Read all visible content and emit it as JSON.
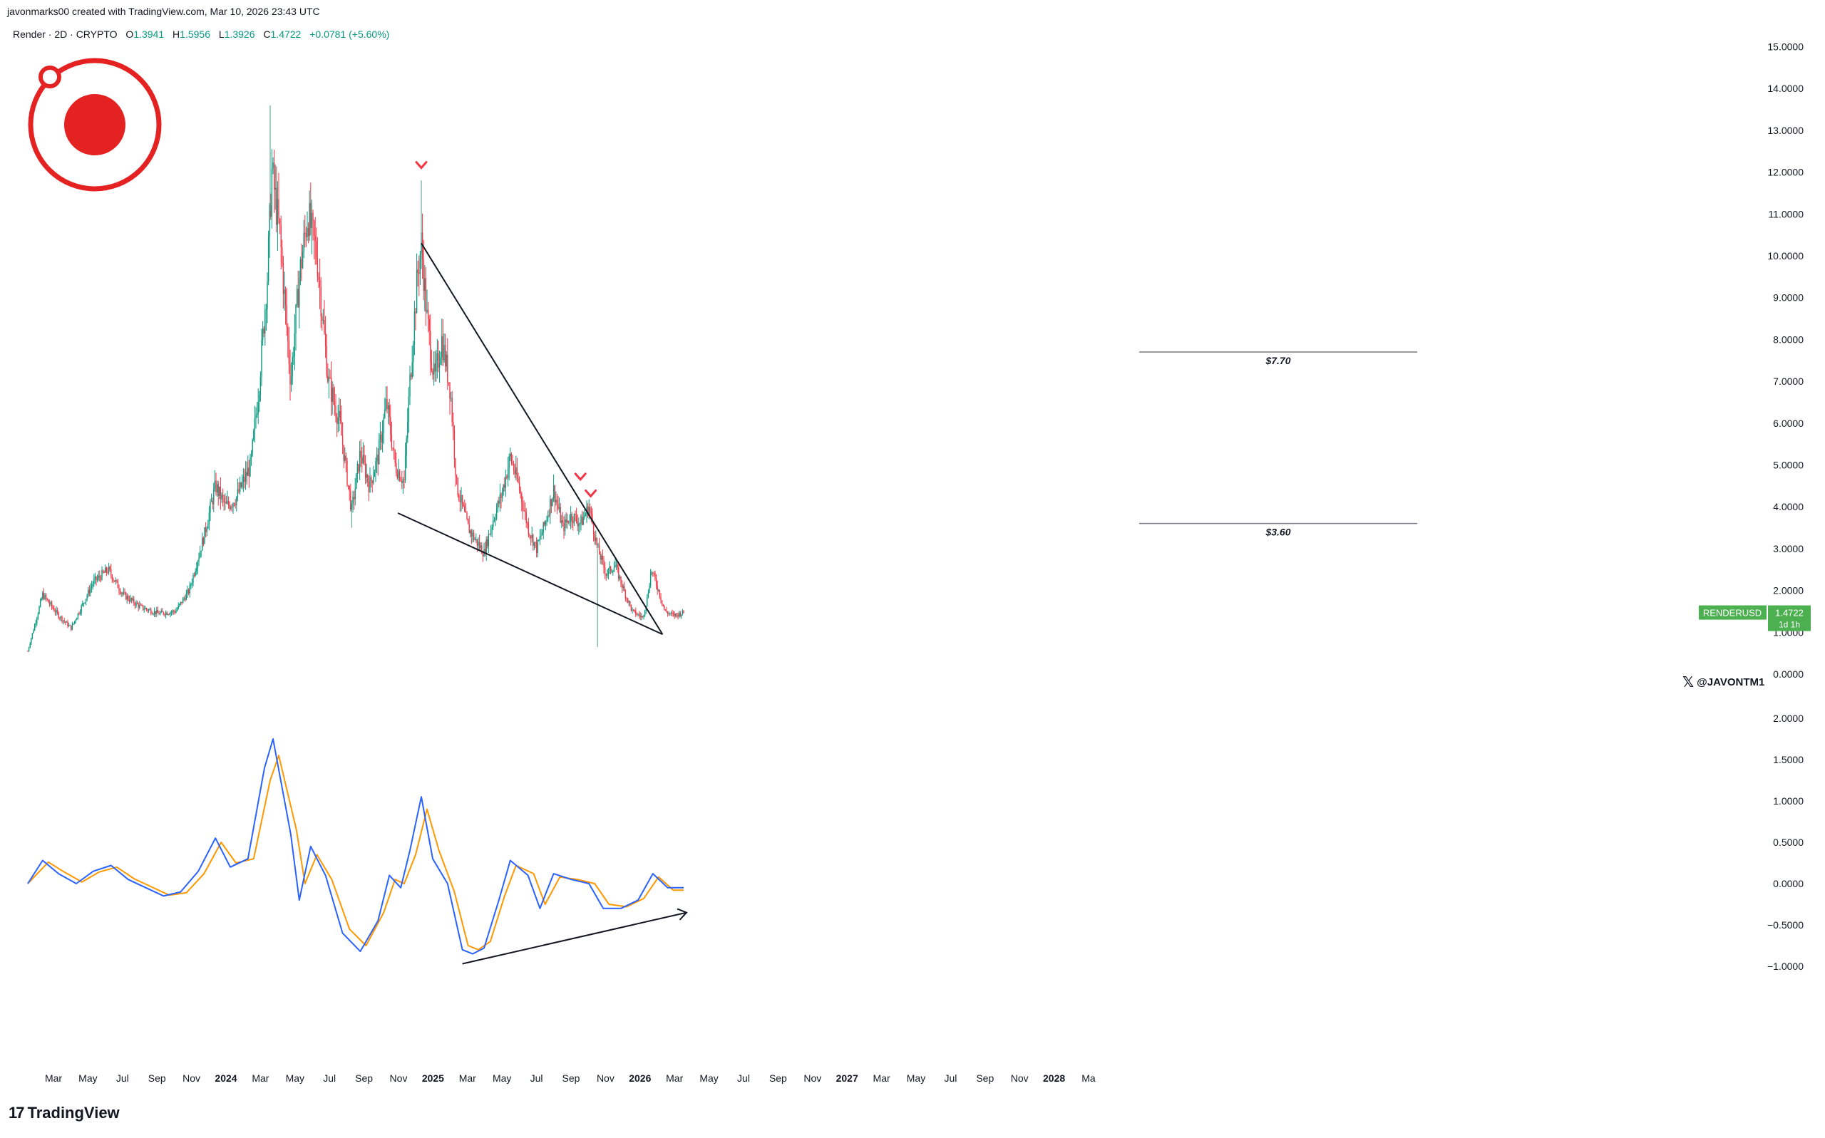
{
  "header": {
    "credit": "javonmarks00 created with TradingView.com, Mar 10, 2026 23:43 UTC",
    "symbol": "Render · 2D · CRYPTO",
    "open_label": "O",
    "open": "1.3941",
    "high_label": "H",
    "high": "1.5956",
    "low_label": "L",
    "low": "1.3926",
    "close_label": "C",
    "close": "1.4722",
    "change": "+0.0781 (+5.60%)"
  },
  "footer": {
    "brand_icon": "17",
    "brand": "TradingView"
  },
  "watermark": {
    "icon": "x-logo-icon",
    "handle": "@JAVONTM1"
  },
  "colors": {
    "up": "#089981",
    "down": "#f23645",
    "macd": "#2962ff",
    "signal": "#ff9800",
    "logo": "#e52222",
    "price_tag": "#4caf50"
  },
  "chart_data": [
    {
      "type": "candlestick",
      "series": [
        {
          "name": "RENDERUSD"
        }
      ],
      "x_ticks": [
        "Mar",
        "May",
        "Jul",
        "Sep",
        "Nov",
        "2024",
        "Mar",
        "May",
        "Jul",
        "Sep",
        "Nov",
        "2025",
        "Mar",
        "May",
        "Jul",
        "Sep",
        "Nov",
        "2026",
        "Mar",
        "May",
        "Jul",
        "Sep",
        "Nov",
        "2027",
        "Mar",
        "May",
        "Jul",
        "Sep",
        "Nov",
        "2028",
        "Ma"
      ],
      "y_ticks": [
        "15.0000",
        "14.0000",
        "13.0000",
        "12.0000",
        "11.0000",
        "10.0000",
        "9.0000",
        "8.0000",
        "7.0000",
        "6.0000",
        "5.0000",
        "4.0000",
        "3.0000",
        "2.0000",
        "1.0000",
        "0.0000"
      ],
      "ylim": [
        0,
        15
      ],
      "price_path": [
        [
          "2023-01-15",
          0.55
        ],
        [
          "2023-02-10",
          1.9
        ],
        [
          "2023-03-10",
          1.4
        ],
        [
          "2023-04-01",
          1.1
        ],
        [
          "2023-05-10",
          2.2
        ],
        [
          "2023-06-05",
          2.5
        ],
        [
          "2023-07-01",
          1.9
        ],
        [
          "2023-08-01",
          1.6
        ],
        [
          "2023-09-01",
          1.45
        ],
        [
          "2023-10-01",
          1.5
        ],
        [
          "2023-10-25",
          2.0
        ],
        [
          "2023-11-20",
          3.3
        ],
        [
          "2023-12-10",
          4.5
        ],
        [
          "2023-12-28",
          4.0
        ],
        [
          "2024-01-15",
          4.2
        ],
        [
          "2024-02-10",
          5.0
        ],
        [
          "2024-02-25",
          7.0
        ],
        [
          "2024-03-10",
          9.5
        ],
        [
          "2024-03-18",
          12.0
        ],
        [
          "2024-04-01",
          10.5
        ],
        [
          "2024-04-20",
          7.0
        ],
        [
          "2024-05-05",
          9.5
        ],
        [
          "2024-05-20",
          11.0
        ],
        [
          "2024-06-05",
          10.0
        ],
        [
          "2024-06-25",
          7.0
        ],
        [
          "2024-07-15",
          6.0
        ],
        [
          "2024-08-05",
          3.9
        ],
        [
          "2024-08-20",
          5.3
        ],
        [
          "2024-09-05",
          4.5
        ],
        [
          "2024-09-20",
          5.2
        ],
        [
          "2024-10-05",
          6.5
        ],
        [
          "2024-10-20",
          5.0
        ],
        [
          "2024-11-05",
          4.6
        ],
        [
          "2024-11-15",
          7.0
        ],
        [
          "2024-11-28",
          9.5
        ],
        [
          "2024-12-05",
          10.3
        ],
        [
          "2024-12-15",
          8.5
        ],
        [
          "2024-12-28",
          7.0
        ],
        [
          "2025-01-10",
          8.0
        ],
        [
          "2025-01-25",
          6.8
        ],
        [
          "2025-02-05",
          4.5
        ],
        [
          "2025-02-25",
          3.5
        ],
        [
          "2025-03-10",
          3.2
        ],
        [
          "2025-03-25",
          2.9
        ],
        [
          "2025-04-10",
          3.7
        ],
        [
          "2025-04-25",
          4.3
        ],
        [
          "2025-05-10",
          5.2
        ],
        [
          "2025-05-25",
          4.5
        ],
        [
          "2025-06-10",
          3.5
        ],
        [
          "2025-06-25",
          3.0
        ],
        [
          "2025-07-10",
          3.6
        ],
        [
          "2025-07-25",
          4.4
        ],
        [
          "2025-08-10",
          3.5
        ],
        [
          "2025-08-25",
          3.8
        ],
        [
          "2025-09-10",
          3.6
        ],
        [
          "2025-09-25",
          4.0
        ],
        [
          "2025-10-10",
          3.0
        ],
        [
          "2025-10-25",
          2.4
        ],
        [
          "2025-11-10",
          2.6
        ],
        [
          "2025-11-25",
          2.0
        ],
        [
          "2025-12-10",
          1.5
        ],
        [
          "2025-12-28",
          1.35
        ],
        [
          "2026-01-05",
          1.8
        ],
        [
          "2026-01-12",
          2.5
        ],
        [
          "2026-01-25",
          2.0
        ],
        [
          "2026-02-05",
          1.5
        ],
        [
          "2026-02-20",
          1.4
        ],
        [
          "2026-03-10",
          1.47
        ]
      ],
      "spikes": [
        {
          "date": "2024-03-15",
          "high": 13.6
        },
        {
          "date": "2024-08-05",
          "low": 3.5
        },
        {
          "date": "2024-12-05",
          "high": 11.8
        },
        {
          "date": "2025-10-10",
          "low": 0.65
        }
      ],
      "last_price_label": "RENDERUSD",
      "last_price": "1.4722",
      "countdown": "1d 1h",
      "levels": [
        {
          "label": "$7.70",
          "value": 7.7
        },
        {
          "label": "$3.60",
          "value": 3.6
        }
      ],
      "trendlines": [
        {
          "from": [
            "2024-12-05",
            10.3
          ],
          "to": [
            "2026-02-01",
            0.95
          ]
        },
        {
          "from": [
            "2024-10-25",
            3.85
          ],
          "to": [
            "2026-02-01",
            0.95
          ]
        }
      ],
      "markers": [
        {
          "date": "2024-12-05",
          "value": 11.95
        },
        {
          "date": "2025-09-10",
          "value": 4.5
        },
        {
          "date": "2025-09-28",
          "value": 4.1
        }
      ]
    },
    {
      "type": "line",
      "series": [
        {
          "name": ""
        },
        {
          "name": ""
        }
      ],
      "y_ticks": [
        "2.0000",
        "1.5000",
        "1.0000",
        "0.5000",
        "0.0000",
        "−0.5000",
        "−1.0000"
      ],
      "ylim": [
        -1.0,
        2.0
      ],
      "macd": [
        [
          "2023-01-15",
          0.0
        ],
        [
          "2023-02-10",
          0.28
        ],
        [
          "2023-03-10",
          0.12
        ],
        [
          "2023-04-10",
          0.0
        ],
        [
          "2023-05-10",
          0.15
        ],
        [
          "2023-06-10",
          0.22
        ],
        [
          "2023-07-10",
          0.05
        ],
        [
          "2023-08-10",
          -0.05
        ],
        [
          "2023-09-10",
          -0.15
        ],
        [
          "2023-10-10",
          -0.1
        ],
        [
          "2023-11-10",
          0.15
        ],
        [
          "2023-12-10",
          0.55
        ],
        [
          "2024-01-05",
          0.2
        ],
        [
          "2024-02-05",
          0.3
        ],
        [
          "2024-03-05",
          1.4
        ],
        [
          "2024-03-20",
          1.75
        ],
        [
          "2024-04-20",
          0.6
        ],
        [
          "2024-05-05",
          -0.2
        ],
        [
          "2024-05-25",
          0.45
        ],
        [
          "2024-06-20",
          0.1
        ],
        [
          "2024-07-20",
          -0.6
        ],
        [
          "2024-08-20",
          -0.82
        ],
        [
          "2024-09-20",
          -0.45
        ],
        [
          "2024-10-10",
          0.1
        ],
        [
          "2024-10-30",
          -0.05
        ],
        [
          "2024-11-15",
          0.4
        ],
        [
          "2024-12-05",
          1.05
        ],
        [
          "2024-12-25",
          0.3
        ],
        [
          "2025-01-20",
          0.0
        ],
        [
          "2025-02-15",
          -0.8
        ],
        [
          "2025-03-05",
          -0.85
        ],
        [
          "2025-03-25",
          -0.78
        ],
        [
          "2025-04-20",
          -0.2
        ],
        [
          "2025-05-10",
          0.28
        ],
        [
          "2025-06-10",
          0.1
        ],
        [
          "2025-07-01",
          -0.3
        ],
        [
          "2025-07-25",
          0.12
        ],
        [
          "2025-08-25",
          0.05
        ],
        [
          "2025-09-25",
          0.0
        ],
        [
          "2025-10-20",
          -0.3
        ],
        [
          "2025-11-20",
          -0.3
        ],
        [
          "2025-12-20",
          -0.2
        ],
        [
          "2026-01-15",
          0.12
        ],
        [
          "2026-02-10",
          -0.05
        ],
        [
          "2026-03-10",
          -0.05
        ]
      ],
      "signal": [
        [
          "2023-01-15",
          0.0
        ],
        [
          "2023-02-20",
          0.26
        ],
        [
          "2023-03-20",
          0.14
        ],
        [
          "2023-04-20",
          0.02
        ],
        [
          "2023-05-20",
          0.14
        ],
        [
          "2023-06-20",
          0.2
        ],
        [
          "2023-07-20",
          0.06
        ],
        [
          "2023-08-20",
          -0.04
        ],
        [
          "2023-09-20",
          -0.14
        ],
        [
          "2023-10-20",
          -0.11
        ],
        [
          "2023-11-20",
          0.12
        ],
        [
          "2023-12-20",
          0.5
        ],
        [
          "2024-01-15",
          0.25
        ],
        [
          "2024-02-15",
          0.3
        ],
        [
          "2024-03-15",
          1.25
        ],
        [
          "2024-03-30",
          1.55
        ],
        [
          "2024-04-30",
          0.65
        ],
        [
          "2024-05-15",
          0.0
        ],
        [
          "2024-06-05",
          0.35
        ],
        [
          "2024-07-01",
          0.05
        ],
        [
          "2024-08-01",
          -0.55
        ],
        [
          "2024-08-30",
          -0.75
        ],
        [
          "2024-09-30",
          -0.35
        ],
        [
          "2024-10-20",
          0.05
        ],
        [
          "2024-11-05",
          0.0
        ],
        [
          "2024-11-25",
          0.35
        ],
        [
          "2024-12-15",
          0.9
        ],
        [
          "2025-01-05",
          0.4
        ],
        [
          "2025-02-01",
          -0.1
        ],
        [
          "2025-02-25",
          -0.75
        ],
        [
          "2025-03-15",
          -0.8
        ],
        [
          "2025-04-05",
          -0.7
        ],
        [
          "2025-04-30",
          -0.15
        ],
        [
          "2025-05-20",
          0.22
        ],
        [
          "2025-06-20",
          0.12
        ],
        [
          "2025-07-10",
          -0.25
        ],
        [
          "2025-08-05",
          0.08
        ],
        [
          "2025-09-05",
          0.05
        ],
        [
          "2025-10-05",
          0.0
        ],
        [
          "2025-10-30",
          -0.25
        ],
        [
          "2025-11-30",
          -0.28
        ],
        [
          "2025-12-30",
          -0.18
        ],
        [
          "2026-01-25",
          0.08
        ],
        [
          "2026-02-20",
          -0.08
        ],
        [
          "2026-03-10",
          -0.08
        ]
      ],
      "divergence_line": {
        "from": [
          "2025-02-15",
          -0.97
        ],
        "to": [
          "2026-03-15",
          -0.35
        ]
      }
    }
  ]
}
